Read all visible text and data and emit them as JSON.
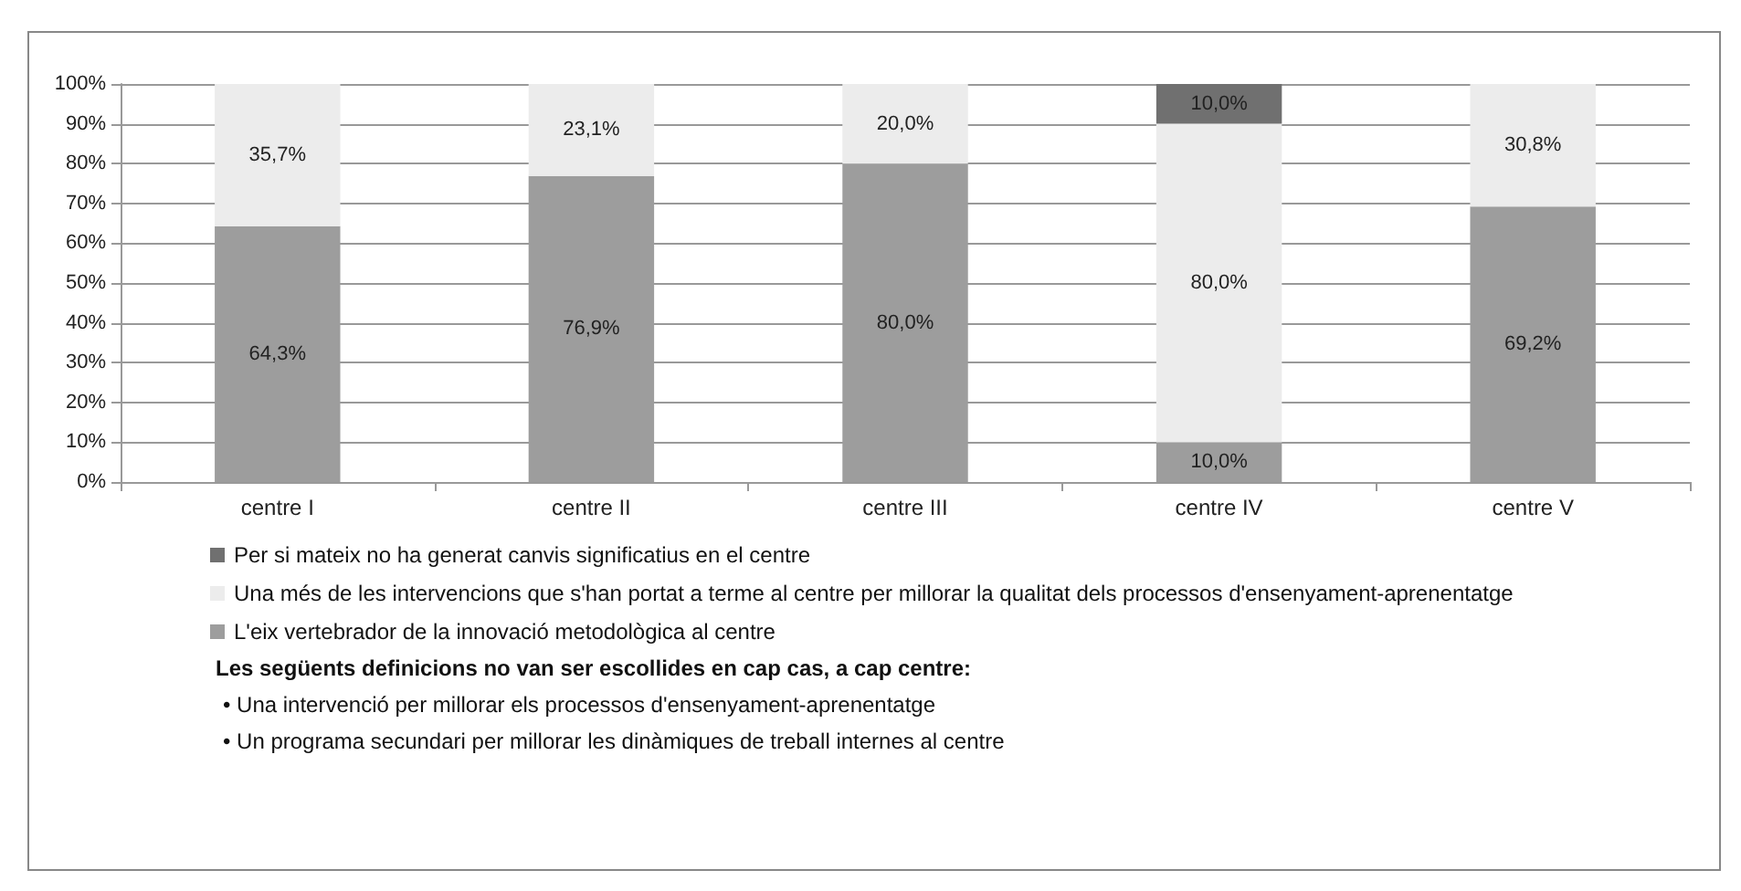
{
  "chart_data": {
    "type": "bar",
    "stacked": true,
    "categories": [
      "centre I",
      "centre II",
      "centre III",
      "centre IV",
      "centre V"
    ],
    "series": [
      {
        "name": "L'eix vertebrador de la innovació metodològica al centre",
        "color": "#9d9d9d",
        "values": [
          64.3,
          76.9,
          80.0,
          10.0,
          69.2
        ],
        "value_labels": [
          "64,3%",
          "76,9%",
          "80,0%",
          "10,0%",
          "69,2%"
        ]
      },
      {
        "name": "Una més de les intervencions que s'han portat a terme al centre per millorar la qualitat dels processos d'ensenyament-aprenentatge",
        "color": "#ececec",
        "values": [
          35.7,
          23.1,
          20.0,
          80.0,
          30.8
        ],
        "value_labels": [
          "35,7%",
          "23,1%",
          "20,0%",
          "80,0%",
          "30,8%"
        ]
      },
      {
        "name": "Per si mateix no ha generat canvis significatius en el centre",
        "color": "#707070",
        "values": [
          null,
          null,
          null,
          10.0,
          null
        ],
        "value_labels": [
          null,
          null,
          null,
          "10,0%",
          null
        ]
      }
    ],
    "ylim": [
      0,
      100
    ],
    "yticks": [
      {
        "value": 0,
        "label": "0%"
      },
      {
        "value": 10,
        "label": "10%"
      },
      {
        "value": 20,
        "label": "20%"
      },
      {
        "value": 30,
        "label": "30%"
      },
      {
        "value": 40,
        "label": "40%"
      },
      {
        "value": 50,
        "label": "50%"
      },
      {
        "value": 60,
        "label": "60%"
      },
      {
        "value": 70,
        "label": "70%"
      },
      {
        "value": 80,
        "label": "80%"
      },
      {
        "value": 90,
        "label": "90%"
      },
      {
        "value": 100,
        "label": "100%"
      }
    ],
    "grid": "y",
    "legend": "bottom",
    "annotations": [
      "Les següents definicions no van ser escollides en cap cas, a cap centre:",
      "• Una intervenció per millorar els processos d'ensenyament-aprenentatge",
      "• Un programa secundari per millorar les dinàmiques de treball internes al centre"
    ]
  }
}
